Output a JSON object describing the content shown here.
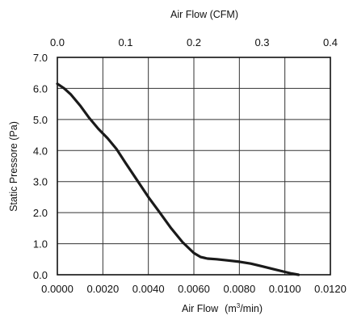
{
  "chart_data": {
    "type": "line",
    "title": "",
    "top_axis": {
      "label": "Air Flow (CFM)",
      "ticks": [
        "0.0",
        "0.1",
        "0.2",
        "0.3",
        "0.4"
      ],
      "range": [
        0,
        0.4
      ]
    },
    "xlabel_main": "Air Flow",
    "xlabel_unit": "(m",
    "xlabel_sup": "3",
    "xlabel_unit_tail": "/min)",
    "ylabel": "Static Pressore (Pa)",
    "x_ticks": [
      "0.0000",
      "0.0020",
      "0.0040",
      "0.0060",
      "0.0080",
      "0.0100",
      "0.0120"
    ],
    "y_ticks": [
      "0.0",
      "1.0",
      "2.0",
      "3.0",
      "4.0",
      "5.0",
      "6.0",
      "7.0"
    ],
    "xlim": [
      0,
      0.012
    ],
    "ylim": [
      0,
      7
    ],
    "grid": true,
    "series": [
      {
        "color": "#1a1a1a",
        "x": [
          0.0,
          0.0003,
          0.0006,
          0.001,
          0.0014,
          0.0018,
          0.0022,
          0.0026,
          0.003,
          0.0035,
          0.004,
          0.0045,
          0.005,
          0.0055,
          0.006,
          0.0063,
          0.0066,
          0.007,
          0.0075,
          0.008,
          0.0085,
          0.009,
          0.0095,
          0.01,
          0.0103,
          0.0106
        ],
        "y": [
          6.15,
          6.0,
          5.8,
          5.45,
          5.05,
          4.7,
          4.4,
          4.05,
          3.6,
          3.05,
          2.5,
          2.0,
          1.5,
          1.05,
          0.7,
          0.57,
          0.52,
          0.5,
          0.46,
          0.42,
          0.36,
          0.27,
          0.18,
          0.09,
          0.04,
          0.0
        ]
      }
    ]
  }
}
